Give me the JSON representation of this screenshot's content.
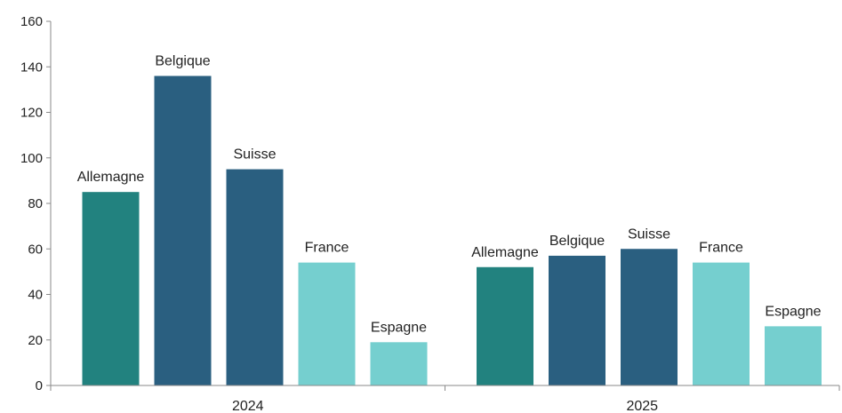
{
  "chart_data": {
    "type": "bar",
    "categories": [
      "2024",
      "2025"
    ],
    "bar_labels": [
      "Allemagne",
      "Belgique",
      "Suisse",
      "France",
      "Espagne"
    ],
    "series": [
      {
        "name": "Allemagne",
        "values": [
          85,
          52
        ]
      },
      {
        "name": "Belgique",
        "values": [
          136,
          57
        ]
      },
      {
        "name": "Suisse",
        "values": [
          95,
          60
        ]
      },
      {
        "name": "France",
        "values": [
          54,
          54
        ]
      },
      {
        "name": "Espagne",
        "values": [
          19,
          26
        ]
      }
    ],
    "colors": [
      "#22827f",
      "#2a5f80",
      "#2a5f80",
      "#75cfcf",
      "#75cfcf"
    ],
    "title": "",
    "xlabel": "",
    "ylabel": "",
    "ylim": [
      0,
      160
    ],
    "yticks": [
      0,
      20,
      40,
      60,
      80,
      100,
      120,
      140,
      160
    ],
    "grid": false,
    "legend": "none"
  }
}
